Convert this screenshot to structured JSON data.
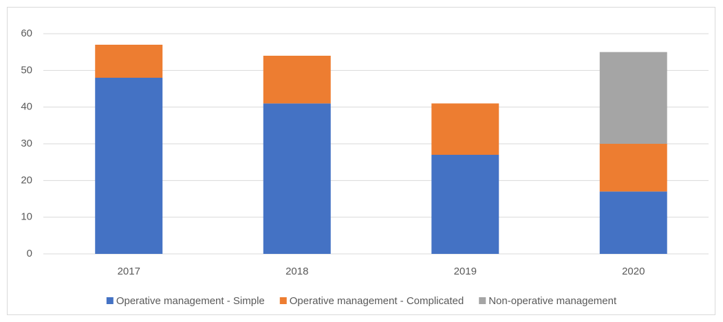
{
  "chart_data": {
    "type": "stacked_bar",
    "categories": [
      "2017",
      "2018",
      "2019",
      "2020"
    ],
    "series": [
      {
        "name": "Operative management - Simple",
        "color": "#4472c4",
        "values": [
          48,
          41,
          27,
          17
        ]
      },
      {
        "name": "Operative management - Complicated",
        "color": "#ed7d31",
        "values": [
          9,
          13,
          14,
          13
        ]
      },
      {
        "name": "Non-operative management",
        "color": "#a5a5a5",
        "values": [
          0,
          0,
          0,
          25
        ]
      }
    ],
    "ylim": [
      0,
      60
    ],
    "yticks": [
      0,
      10,
      20,
      30,
      40,
      50,
      60
    ],
    "grid": true,
    "legend": "bottom"
  }
}
